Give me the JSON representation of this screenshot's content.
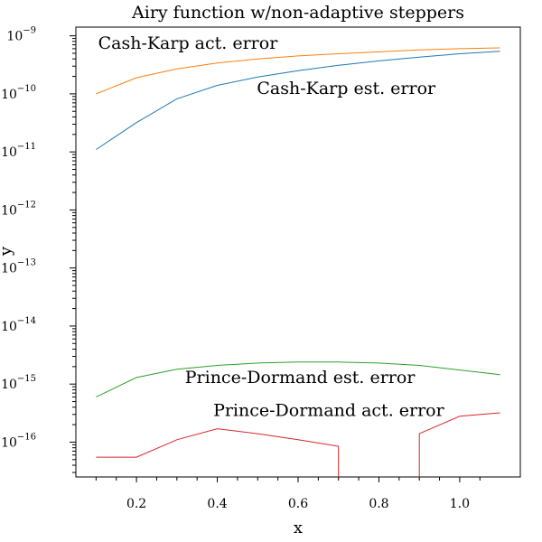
{
  "chart_data": {
    "type": "line",
    "title": "Airy function w/non-adaptive steppers",
    "xlabel": "x",
    "ylabel": "y",
    "xlim": [
      0.05,
      1.15
    ],
    "ylim_log10": [
      -16.6,
      -8.85
    ],
    "yscale": "log",
    "x_ticks": [
      0.2,
      0.4,
      0.6,
      0.8,
      1.0
    ],
    "x_tick_labels": [
      "0.2",
      "0.4",
      "0.6",
      "0.8",
      "1.0"
    ],
    "y_ticks": [
      -16,
      -15,
      -14,
      -13,
      -12,
      -11,
      -10,
      -9
    ],
    "y_tick_bases": [
      "10",
      "10",
      "10",
      "10",
      "10",
      "10",
      "10",
      "10"
    ],
    "y_tick_exponents": [
      "−16",
      "−15",
      "−14",
      "−13",
      "−12",
      "−11",
      "−10",
      "−9"
    ],
    "grid": false,
    "legend": "none",
    "x": [
      0.1,
      0.2,
      0.3,
      0.4,
      0.5,
      0.6,
      0.7,
      0.8,
      0.9,
      1.0,
      1.1
    ],
    "series": [
      {
        "label": "Cash-Karp est. error",
        "color": "#1f77b4",
        "values": [
          1.1e-11,
          3.2e-11,
          8.2e-11,
          1.4e-10,
          1.95e-10,
          2.5e-10,
          3.1e-10,
          3.7e-10,
          4.3e-10,
          4.9e-10,
          5.4e-10
        ]
      },
      {
        "label": "Cash-Karp act. error",
        "color": "#ff7f0e",
        "values": [
          1e-10,
          1.9e-10,
          2.7e-10,
          3.4e-10,
          4e-10,
          4.5e-10,
          4.9e-10,
          5.3e-10,
          5.7e-10,
          6e-10,
          6.2e-10
        ]
      },
      {
        "label": "Prince-Dormand est. error",
        "color": "#2ca02c",
        "values": [
          6e-16,
          1.3e-15,
          1.8e-15,
          2.1e-15,
          2.3e-15,
          2.4e-15,
          2.4e-15,
          2.3e-15,
          2.1e-15,
          1.75e-15,
          1.45e-15
        ]
      },
      {
        "label": "Prince-Dormand act. error",
        "color": "#d62728",
        "values": [
          5.5e-17,
          5.5e-17,
          1.1e-16,
          1.7e-16,
          1.4e-16,
          1.1e-16,
          8.5e-17,
          1e-20,
          1e-20,
          2.8e-16,
          3.2e-16
        ],
        "segments": [
          {
            "x": [
              0.1,
              0.2,
              0.3,
              0.4,
              0.5,
              0.6,
              0.7,
              0.7
            ],
            "y": [
              5.5e-17,
              5.5e-17,
              1.1e-16,
              1.7e-16,
              1.4e-16,
              1.1e-16,
              8.5e-17,
              1e-20
            ]
          },
          {
            "x": [
              0.9,
              0.9,
              1.0,
              1.1
            ],
            "y": [
              1e-20,
              1.4e-16,
              2.8e-16,
              3.2e-16
            ]
          }
        ]
      }
    ],
    "annotations": [
      {
        "text": "Cash-Karp act. error",
        "x": 0.105,
        "y": 6e-10,
        "anchor": "start"
      },
      {
        "text": "Cash-Karp est. error",
        "x": 0.498,
        "y": 1e-10,
        "anchor": "start"
      },
      {
        "text": "Prince-Dormand est. error",
        "x": 0.32,
        "y": 1.05e-15,
        "anchor": "start"
      },
      {
        "text": "Prince-Dormand act. error",
        "x": 0.39,
        "y": 2.8e-16,
        "anchor": "start"
      }
    ]
  }
}
